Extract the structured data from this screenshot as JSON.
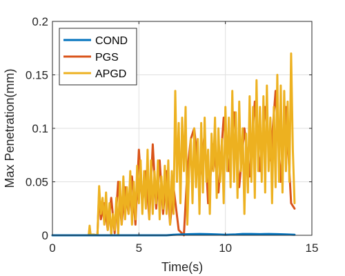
{
  "chart_data": {
    "type": "line",
    "title": "",
    "xlabel": "Time(s)",
    "ylabel": "Max Penetration(mm)",
    "xlim": [
      0,
      15
    ],
    "ylim": [
      0,
      0.2
    ],
    "xticks": [
      0,
      5,
      10,
      15
    ],
    "yticks": [
      0,
      0.05,
      0.1,
      0.15,
      0.2
    ],
    "xtick_labels": [
      "0",
      "5",
      "10",
      "15"
    ],
    "ytick_labels": [
      "0",
      "0.05",
      "0.1",
      "0.15",
      "0.2"
    ],
    "grid": true,
    "legend_position": "top-left",
    "series": [
      {
        "name": "COND",
        "color": "#0072BD",
        "x": [
          0,
          2.0,
          3.0,
          4.0,
          5.0,
          6.0,
          6.6,
          7.0,
          7.5,
          8.0,
          8.5,
          9.0,
          9.5,
          10.0,
          10.6,
          11.0,
          11.5,
          12.0,
          12.5,
          13.0,
          13.5,
          14.0
        ],
        "y": [
          0,
          0,
          0,
          0,
          0,
          0,
          0,
          0.0005,
          0.0008,
          0.001,
          0.0012,
          0.001,
          0.0008,
          0.0005,
          0.0008,
          0.0012,
          0.0012,
          0.001,
          0.0012,
          0.001,
          0.0008,
          0.0005
        ]
      },
      {
        "name": "PGS",
        "color": "#D95319",
        "x": [
          0,
          2.1,
          2.15,
          2.2,
          2.6,
          2.7,
          2.8,
          3.0,
          3.2,
          3.4,
          3.6,
          3.8,
          4.0,
          4.2,
          4.4,
          4.6,
          4.8,
          5.0,
          5.2,
          5.4,
          5.6,
          5.8,
          6.0,
          6.2,
          6.4,
          6.6,
          6.8,
          7.0,
          7.3,
          7.6,
          7.8,
          8.0,
          8.2,
          8.5,
          8.8,
          9.0,
          9.3,
          9.6,
          9.9,
          10.2,
          10.5,
          10.8,
          11.1,
          11.4,
          11.7,
          12.0,
          12.3,
          12.6,
          12.9,
          13.2,
          13.5,
          13.8,
          14.0
        ],
        "y": [
          0,
          0,
          0.007,
          0.001,
          0.0,
          0.04,
          0.015,
          0.03,
          0.005,
          0.035,
          0.002,
          0.05,
          0.01,
          0.045,
          0.02,
          0.055,
          0.01,
          0.08,
          0.03,
          0.06,
          0.015,
          0.085,
          0.025,
          0.07,
          0.02,
          0.06,
          0.01,
          0.045,
          0.005,
          0.0,
          0.06,
          0.09,
          0.1,
          0.05,
          0.095,
          0.03,
          0.085,
          0.04,
          0.11,
          0.06,
          0.115,
          0.045,
          0.1,
          0.055,
          0.125,
          0.06,
          0.12,
          0.07,
          0.135,
          0.05,
          0.12,
          0.03,
          0.025
        ]
      },
      {
        "name": "APGD",
        "color": "#EDB120",
        "x": [
          0,
          2.1,
          2.15,
          2.2,
          2.6,
          2.7,
          2.8,
          2.9,
          3.0,
          3.1,
          3.2,
          3.3,
          3.4,
          3.5,
          3.6,
          3.7,
          3.8,
          3.9,
          4.0,
          4.1,
          4.2,
          4.3,
          4.4,
          4.5,
          4.6,
          4.7,
          4.8,
          4.9,
          5.0,
          5.1,
          5.2,
          5.3,
          5.4,
          5.5,
          5.6,
          5.7,
          5.8,
          5.9,
          6.0,
          6.1,
          6.2,
          6.3,
          6.4,
          6.5,
          6.6,
          6.7,
          6.8,
          6.9,
          7.0,
          7.1,
          7.2,
          7.3,
          7.4,
          7.5,
          7.6,
          7.7,
          7.8,
          7.9,
          8.0,
          8.1,
          8.2,
          8.3,
          8.4,
          8.5,
          8.6,
          8.7,
          8.8,
          8.9,
          9.0,
          9.1,
          9.2,
          9.3,
          9.4,
          9.5,
          9.6,
          9.7,
          9.8,
          9.9,
          10.0,
          10.1,
          10.2,
          10.3,
          10.4,
          10.5,
          10.6,
          10.7,
          10.8,
          10.9,
          11.0,
          11.1,
          11.2,
          11.3,
          11.4,
          11.5,
          11.6,
          11.7,
          11.8,
          11.9,
          12.0,
          12.1,
          12.2,
          12.3,
          12.4,
          12.5,
          12.6,
          12.7,
          12.8,
          12.9,
          13.0,
          13.1,
          13.2,
          13.3,
          13.4,
          13.5,
          13.6,
          13.7,
          13.8,
          13.9,
          14.0
        ],
        "y": [
          0,
          0,
          0.009,
          0.001,
          0.0,
          0.046,
          0.02,
          0.035,
          0.01,
          0.04,
          0.005,
          0.03,
          0.0,
          0.02,
          0.005,
          0.035,
          0.0,
          0.05,
          0.01,
          0.055,
          0.015,
          0.045,
          0.02,
          0.06,
          0.01,
          0.05,
          0.015,
          0.065,
          0.03,
          0.07,
          0.02,
          0.06,
          0.025,
          0.08,
          0.015,
          0.07,
          0.02,
          0.06,
          0.03,
          0.07,
          0.015,
          0.055,
          0.025,
          0.065,
          0.02,
          0.07,
          0.01,
          0.06,
          0.02,
          0.135,
          0.05,
          0.105,
          0.03,
          0.11,
          0.06,
          0.12,
          0.01,
          0.06,
          0.09,
          0.03,
          0.1,
          0.045,
          0.09,
          0.02,
          0.105,
          0.04,
          0.11,
          0.05,
          0.08,
          0.02,
          0.095,
          0.06,
          0.11,
          0.035,
          0.1,
          0.05,
          0.09,
          0.03,
          0.12,
          0.06,
          0.11,
          0.045,
          0.135,
          0.05,
          0.115,
          0.035,
          0.125,
          0.06,
          0.1,
          0.02,
          0.095,
          0.04,
          0.13,
          0.05,
          0.12,
          0.035,
          0.145,
          0.06,
          0.12,
          0.05,
          0.13,
          0.04,
          0.14,
          0.06,
          0.11,
          0.03,
          0.12,
          0.045,
          0.15,
          0.05,
          0.14,
          0.04,
          0.135,
          0.06,
          0.125,
          0.05,
          0.17,
          0.08,
          0.03
        ]
      }
    ]
  }
}
